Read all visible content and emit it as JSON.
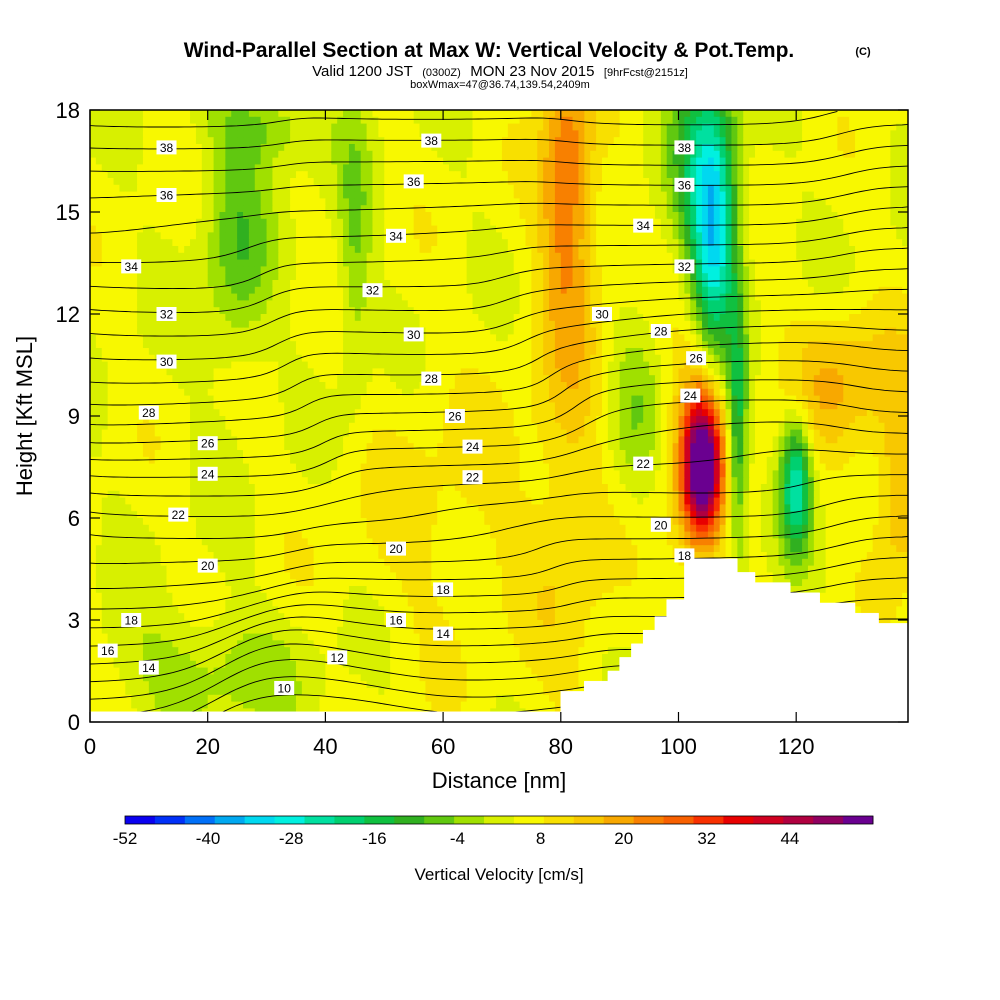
{
  "title": {
    "main": "Wind-Parallel Section at Max W: Vertical Velocity & Pot.Temp.",
    "copyright": "(C)",
    "valid_prefix": "Valid 1200 JST",
    "valid_utc": "(0300Z)",
    "valid_date": "MON 23 Nov 2015",
    "forecast": "[9hrFcst@2151z]",
    "box_info": "boxWmax=47@36.74,139.54,2409m"
  },
  "chart_data": {
    "type": "heatmap",
    "xlabel": "Distance [nm]",
    "ylabel": "Height [Kft MSL]",
    "xlim": [
      0,
      139
    ],
    "ylim": [
      0,
      18
    ],
    "x_ticks": [
      0,
      20,
      40,
      60,
      80,
      100,
      120
    ],
    "y_ticks": [
      0,
      3,
      6,
      9,
      12,
      15,
      18
    ],
    "colorbar": {
      "label": "Vertical Velocity [cm/s]",
      "tick_values": [
        -52,
        -40,
        -28,
        -16,
        -4,
        8,
        20,
        32,
        44
      ],
      "min": -52,
      "max": 56,
      "colors": [
        "#0a00f0",
        "#0030f8",
        "#0070f8",
        "#00a8f0",
        "#00d8f0",
        "#00f0e0",
        "#00e0a0",
        "#00d070",
        "#10c040",
        "#30b020",
        "#60c810",
        "#a0e000",
        "#d8f000",
        "#f8f800",
        "#f8e000",
        "#f8c800",
        "#f8a800",
        "#f88000",
        "#f86000",
        "#f83000",
        "#e80000",
        "#d00020",
        "#b00040",
        "#900060",
        "#6a0090"
      ]
    },
    "velocity_features": [
      {
        "x": 104,
        "y": 7.5,
        "w": 47,
        "sx": 2.2,
        "sy": 1.4
      },
      {
        "x": 103,
        "y": 8.2,
        "w": 14,
        "sx": 4,
        "sy": 2.5
      },
      {
        "x": 81,
        "y": 16,
        "w": 18,
        "sx": 3,
        "sy": 2.8
      },
      {
        "x": 82,
        "y": 8.5,
        "w": 8,
        "sx": 5,
        "sy": 6
      },
      {
        "x": 106,
        "y": 14,
        "w": -30,
        "sx": 2.6,
        "sy": 2.5
      },
      {
        "x": 104,
        "y": 16.5,
        "w": -18,
        "sx": 4,
        "sy": 2.5
      },
      {
        "x": 110,
        "y": 8.5,
        "w": -22,
        "sx": 1.2,
        "sy": 2.5
      },
      {
        "x": 120,
        "y": 7,
        "w": -30,
        "sx": 1.8,
        "sy": 1.4
      },
      {
        "x": 25,
        "y": 14,
        "w": -12,
        "sx": 4,
        "sy": 2.5
      },
      {
        "x": 45,
        "y": 14,
        "w": -10,
        "sx": 2,
        "sy": 3
      },
      {
        "x": 92,
        "y": 9,
        "w": -8,
        "sx": 4,
        "sy": 2
      },
      {
        "x": 30,
        "y": 17.5,
        "w": -10,
        "sx": 6,
        "sy": 0.8
      },
      {
        "x": 20,
        "y": 1.5,
        "w": -8,
        "sx": 12,
        "sy": 1.2
      },
      {
        "x": 128,
        "y": 10,
        "w": 12,
        "sx": 7,
        "sy": 1.5
      },
      {
        "x": 138,
        "y": 7,
        "w": 14,
        "sx": 3,
        "sy": 2
      },
      {
        "x": 60,
        "y": 6,
        "w": 5,
        "sx": 12,
        "sy": 3
      }
    ],
    "terrain": [
      {
        "x": 0,
        "h": 0.3
      },
      {
        "x": 78,
        "h": 0.3
      },
      {
        "x": 80,
        "h": 0.9
      },
      {
        "x": 84,
        "h": 1.2
      },
      {
        "x": 88,
        "h": 1.5
      },
      {
        "x": 90,
        "h": 1.9
      },
      {
        "x": 92,
        "h": 2.3
      },
      {
        "x": 94,
        "h": 2.7
      },
      {
        "x": 96,
        "h": 3.1
      },
      {
        "x": 98,
        "h": 3.6
      },
      {
        "x": 101,
        "h": 4.8
      },
      {
        "x": 110,
        "h": 4.4
      },
      {
        "x": 113,
        "h": 4.1
      },
      {
        "x": 119,
        "h": 3.8
      },
      {
        "x": 124,
        "h": 3.5
      },
      {
        "x": 130,
        "h": 3.2
      },
      {
        "x": 134,
        "h": 2.9
      },
      {
        "x": 139,
        "h": 2.9
      }
    ],
    "theta_contour_values": [
      10,
      11,
      12,
      13,
      14,
      15,
      16,
      17,
      18,
      19,
      20,
      21,
      22,
      23,
      24,
      25,
      26,
      27,
      28,
      29,
      30,
      31,
      32,
      33,
      34,
      35,
      36,
      37,
      38,
      39
    ],
    "theta_labels": [
      {
        "value": "10",
        "x": 33,
        "y": 1.0
      },
      {
        "value": "12",
        "x": 42,
        "y": 1.9
      },
      {
        "value": "14",
        "x": 10,
        "y": 1.6
      },
      {
        "value": "14",
        "x": 60,
        "y": 2.6
      },
      {
        "value": "16",
        "x": 3,
        "y": 2.1
      },
      {
        "value": "16",
        "x": 52,
        "y": 3.0
      },
      {
        "value": "18",
        "x": 7,
        "y": 3.0
      },
      {
        "value": "18",
        "x": 60,
        "y": 3.9
      },
      {
        "value": "18",
        "x": 101,
        "y": 4.9
      },
      {
        "value": "20",
        "x": 20,
        "y": 4.6
      },
      {
        "value": "20",
        "x": 52,
        "y": 5.1
      },
      {
        "value": "20",
        "x": 97,
        "y": 5.8
      },
      {
        "value": "22",
        "x": 15,
        "y": 6.1
      },
      {
        "value": "22",
        "x": 65,
        "y": 7.2
      },
      {
        "value": "22",
        "x": 94,
        "y": 7.6
      },
      {
        "value": "24",
        "x": 20,
        "y": 7.3
      },
      {
        "value": "24",
        "x": 65,
        "y": 8.1
      },
      {
        "value": "24",
        "x": 102,
        "y": 9.6
      },
      {
        "value": "26",
        "x": 20,
        "y": 8.2
      },
      {
        "value": "26",
        "x": 62,
        "y": 9.0
      },
      {
        "value": "26",
        "x": 103,
        "y": 10.7
      },
      {
        "value": "28",
        "x": 10,
        "y": 9.1
      },
      {
        "value": "28",
        "x": 58,
        "y": 10.1
      },
      {
        "value": "28",
        "x": 97,
        "y": 11.5
      },
      {
        "value": "30",
        "x": 13,
        "y": 10.6
      },
      {
        "value": "30",
        "x": 55,
        "y": 11.4
      },
      {
        "value": "30",
        "x": 87,
        "y": 12.0
      },
      {
        "value": "32",
        "x": 13,
        "y": 12.0
      },
      {
        "value": "32",
        "x": 48,
        "y": 12.7
      },
      {
        "value": "32",
        "x": 101,
        "y": 13.4
      },
      {
        "value": "34",
        "x": 7,
        "y": 13.4
      },
      {
        "value": "34",
        "x": 52,
        "y": 14.3
      },
      {
        "value": "34",
        "x": 94,
        "y": 14.6
      },
      {
        "value": "36",
        "x": 13,
        "y": 15.5
      },
      {
        "value": "36",
        "x": 55,
        "y": 15.9
      },
      {
        "value": "36",
        "x": 101,
        "y": 15.8
      },
      {
        "value": "38",
        "x": 13,
        "y": 16.9
      },
      {
        "value": "38",
        "x": 58,
        "y": 17.1
      },
      {
        "value": "38",
        "x": 101,
        "y": 16.9
      }
    ]
  }
}
